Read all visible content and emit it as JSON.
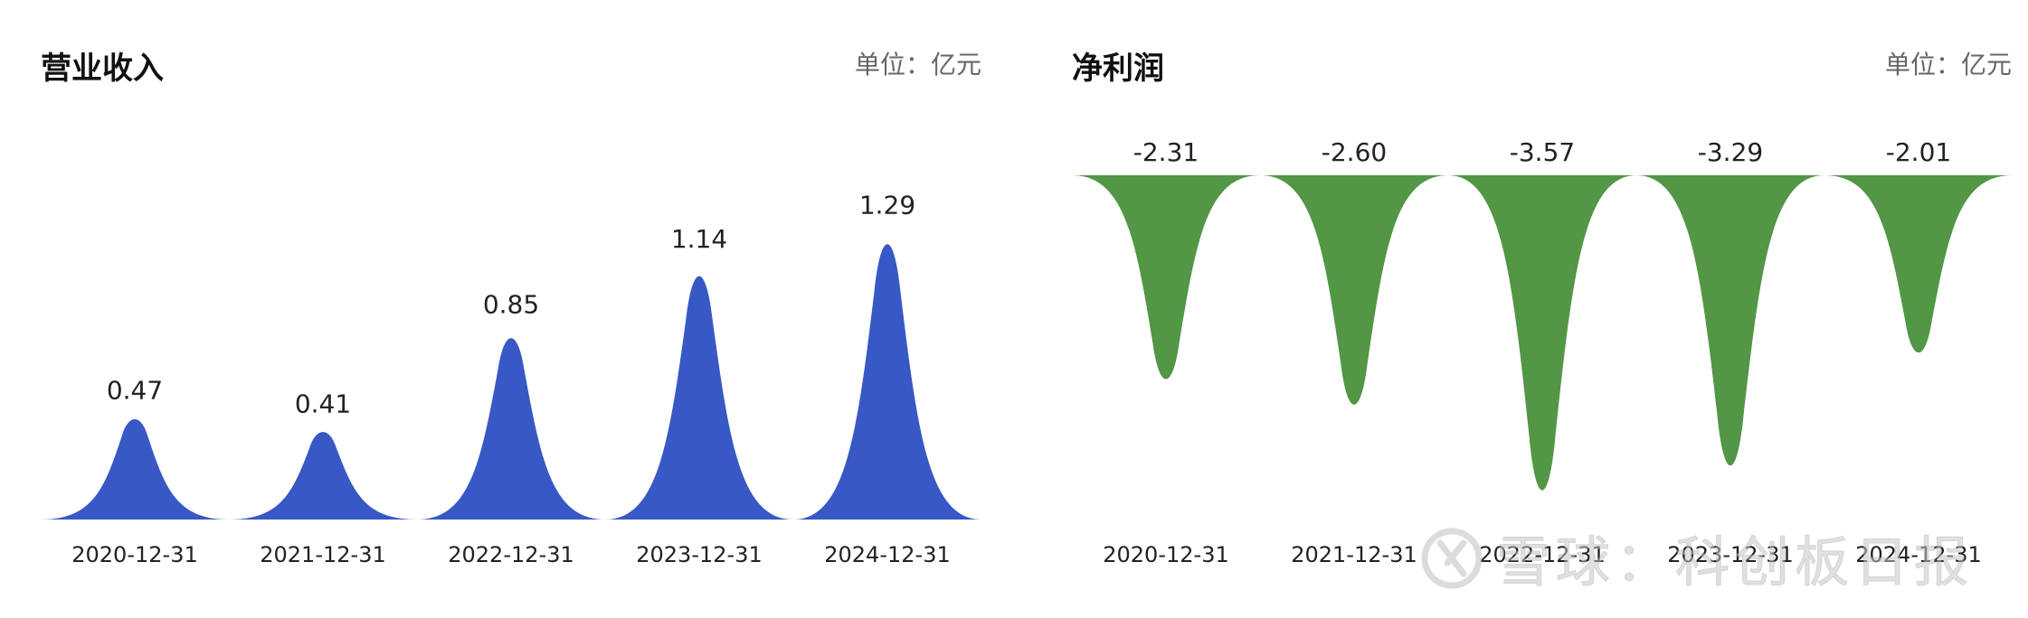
{
  "watermark": "雪球：科创板日报",
  "chart_data": [
    {
      "type": "area",
      "title": "营业收入",
      "unit": "单位：亿元",
      "categories": [
        "2020-12-31",
        "2021-12-31",
        "2022-12-31",
        "2023-12-31",
        "2024-12-31"
      ],
      "values": [
        0.47,
        0.41,
        0.85,
        1.14,
        1.29
      ],
      "value_labels": [
        "0.47",
        "0.41",
        "0.85",
        "1.14",
        "1.29"
      ],
      "color": "#3858c5",
      "ylim": [
        0,
        1.6
      ],
      "grid": false,
      "legend": "none"
    },
    {
      "type": "area",
      "title": "净利润",
      "unit": "单位：亿元",
      "categories": [
        "2020-12-31",
        "2021-12-31",
        "2022-12-31",
        "2023-12-31",
        "2024-12-31"
      ],
      "values": [
        -2.31,
        -2.6,
        -3.57,
        -3.29,
        -2.01
      ],
      "value_labels": [
        "-2.31",
        "-2.60",
        "-3.57",
        "-3.29",
        "-2.01"
      ],
      "color": "#529646",
      "ylim": [
        -4.5,
        0
      ],
      "grid": false,
      "legend": "none"
    }
  ]
}
